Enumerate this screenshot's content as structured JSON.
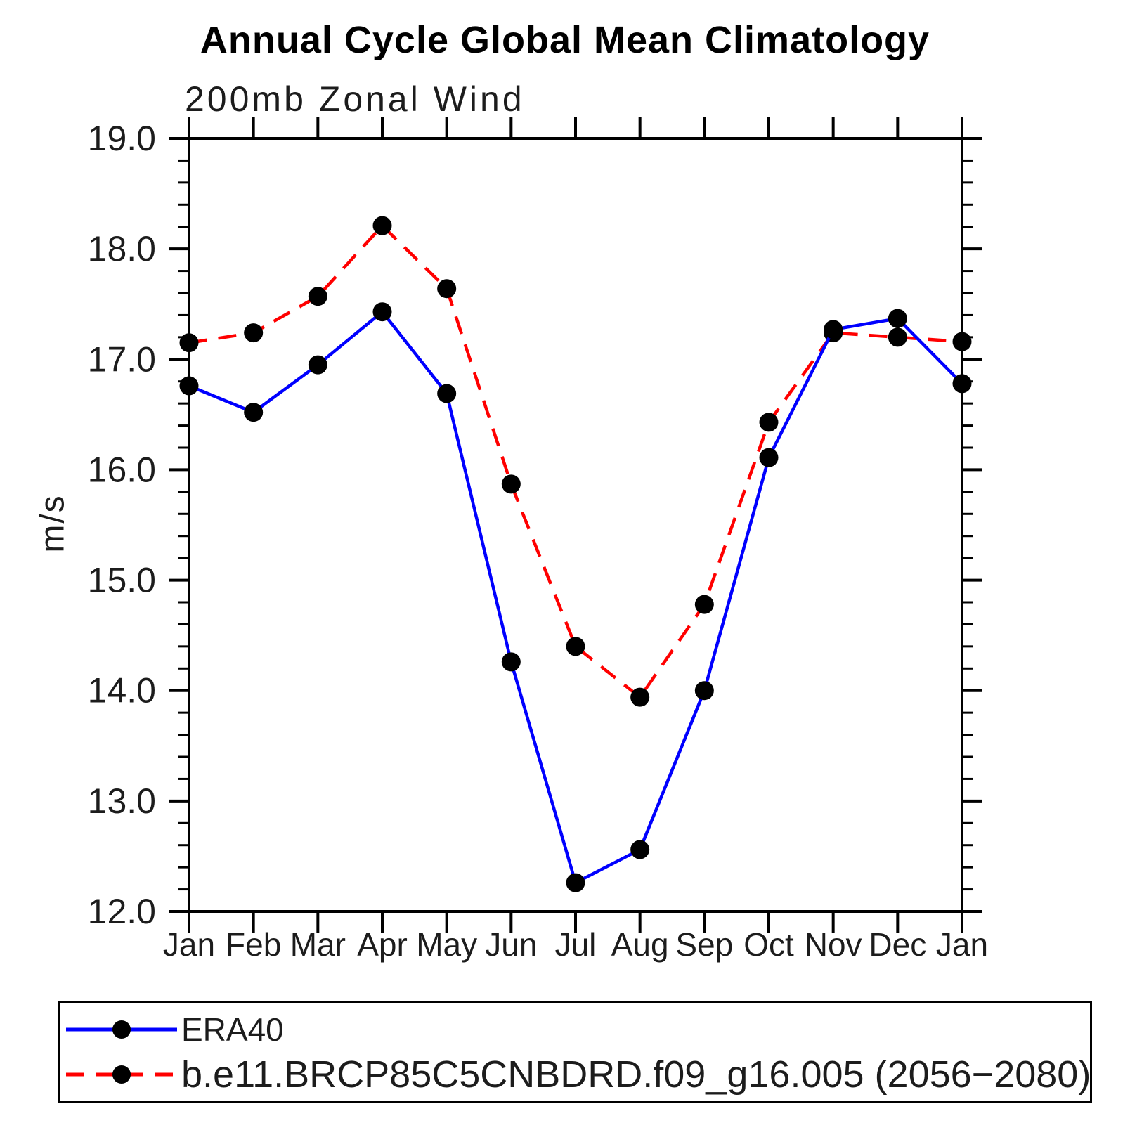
{
  "title": "Annual Cycle Global Mean Climatology",
  "subtitle": "200mb Zonal Wind",
  "ylabel": "m/s",
  "legend": [
    {
      "label": "ERA40",
      "color": "#0000ff",
      "dash": ""
    },
    {
      "label": "b.e11.BRCP85C5CNBDRD.f09_g16.005 (2056−2080)",
      "color": "#ff0000",
      "dash": "26 16"
    }
  ],
  "chart_data": {
    "type": "line",
    "categories": [
      "Jan",
      "Feb",
      "Mar",
      "Apr",
      "May",
      "Jun",
      "Jul",
      "Aug",
      "Sep",
      "Oct",
      "Nov",
      "Dec",
      "Jan"
    ],
    "series": [
      {
        "name": "ERA40",
        "color": "#0000ff",
        "style": "solid",
        "marker": "black-dot",
        "values": [
          16.76,
          16.52,
          16.95,
          17.43,
          16.69,
          14.26,
          12.26,
          12.56,
          14.0,
          16.11,
          17.27,
          17.37,
          16.78
        ]
      },
      {
        "name": "b.e11.BRCP85C5CNBDRD.f09_g16.005 (2056−2080)",
        "color": "#ff0000",
        "style": "dashed",
        "marker": "black-dot",
        "values": [
          17.15,
          17.24,
          17.57,
          18.21,
          17.64,
          15.87,
          14.4,
          13.94,
          14.78,
          16.43,
          17.24,
          17.2,
          17.16
        ]
      }
    ],
    "title": "Annual Cycle Global Mean Climatology",
    "subtitle": "200mb Zonal Wind",
    "xlabel": "",
    "ylabel": "m/s",
    "ylim": [
      12.0,
      19.0
    ],
    "ytick_interval": 1.0,
    "yminor_interval": 0.2,
    "ytick_labels": [
      "12.0",
      "13.0",
      "14.0",
      "15.0",
      "16.0",
      "17.0",
      "18.0",
      "19.0"
    ],
    "grid": false,
    "legend_position": "bottom",
    "marker_color": "#000000"
  }
}
